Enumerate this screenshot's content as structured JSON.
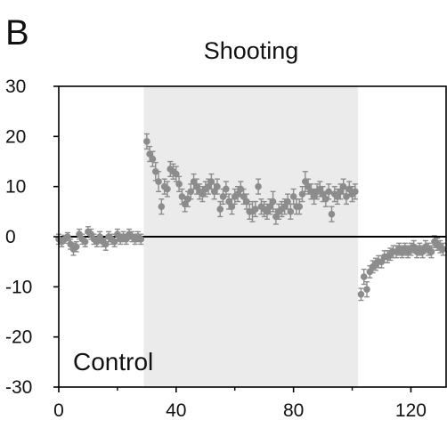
{
  "panel_label": "B",
  "chart_data": {
    "type": "scatter",
    "title": "Shooting",
    "xlabel": "",
    "ylabel": "",
    "annotation": "Control",
    "xlim": [
      0,
      132
    ],
    "ylim": [
      -30,
      30
    ],
    "xticks": [
      0,
      40,
      80,
      120
    ],
    "yticks": [
      30,
      20,
      10,
      0,
      -10,
      -20,
      -30
    ],
    "grid": false,
    "legend": "none",
    "shaded_region": {
      "x_start": 29,
      "x_end": 102,
      "color": "#ebebeb"
    },
    "reference_line_y": 0,
    "marker_color": "#8c8c8c",
    "series": [
      {
        "x": [
          0,
          1,
          2,
          3,
          4,
          5,
          6,
          7,
          8,
          9,
          10,
          11,
          12,
          13,
          14,
          15,
          16,
          17,
          18,
          19,
          20,
          21,
          22,
          23,
          24,
          25,
          26,
          27,
          28,
          30,
          31,
          32,
          33,
          34,
          35,
          36,
          37,
          38,
          39,
          40,
          41,
          42,
          43,
          44,
          45,
          46,
          47,
          48,
          49,
          50,
          51,
          52,
          53,
          54,
          55,
          56,
          57,
          58,
          59,
          60,
          61,
          62,
          63,
          64,
          65,
          66,
          67,
          68,
          69,
          70,
          71,
          72,
          73,
          74,
          75,
          76,
          77,
          78,
          79,
          80,
          81,
          82,
          83,
          84,
          85,
          86,
          87,
          88,
          89,
          90,
          91,
          92,
          93,
          94,
          95,
          96,
          97,
          98,
          99,
          100,
          101,
          103,
          104,
          105,
          106,
          107,
          108,
          109,
          110,
          111,
          112,
          113,
          114,
          115,
          116,
          117,
          118,
          119,
          120,
          121,
          122,
          123,
          124,
          125,
          126,
          127,
          128,
          129,
          130,
          131
        ],
        "y": [
          -0.5,
          -1,
          -0.5,
          0,
          -1.5,
          -2.5,
          -2,
          0.5,
          -0.5,
          -1,
          1,
          0.5,
          -0.5,
          -1,
          0,
          -1,
          -1.5,
          0,
          -0.5,
          -1,
          0.5,
          -0.5,
          0,
          -0.5,
          0.5,
          0,
          -0.5,
          0,
          -0.5,
          19,
          16.5,
          15.5,
          13,
          11,
          6,
          10,
          9.5,
          13.5,
          13,
          12.5,
          10.5,
          8,
          6.5,
          7.5,
          9,
          11,
          10,
          9,
          8.5,
          9.5,
          10,
          11,
          9,
          10,
          5.5,
          8,
          9.5,
          7,
          6,
          8,
          8.5,
          9.5,
          8,
          7,
          5,
          5,
          5.5,
          10,
          6,
          5.5,
          5,
          6,
          7,
          4,
          5,
          5.5,
          6,
          7,
          5,
          8,
          6,
          6,
          8.5,
          11,
          10,
          9,
          8,
          9,
          9.5,
          8.5,
          7.5,
          9,
          4.5,
          8.5,
          8,
          9,
          10,
          8,
          9.5,
          8.5,
          9,
          -11.5,
          -8,
          -10.5,
          -7,
          -6,
          -5.5,
          -5,
          -5,
          -4,
          -4,
          -3.5,
          -3,
          -3,
          -2.5,
          -3,
          -2.5,
          -3,
          -2.5,
          -2,
          -3,
          -2.5,
          -3,
          -2,
          -2.5,
          -3,
          -1,
          -1.5,
          -2,
          -2.5
        ],
        "error": [
          1,
          1,
          0.8,
          0.8,
          1,
          1.2,
          1,
          1,
          1,
          1,
          1,
          1,
          1,
          1,
          1,
          1,
          1.2,
          1,
          1,
          1,
          1,
          1,
          1,
          1,
          1,
          1,
          1,
          1,
          1,
          1.5,
          1.5,
          1.5,
          1.8,
          2,
          1.5,
          1.5,
          1.5,
          1.5,
          1.5,
          1.5,
          1.5,
          1.5,
          1.5,
          1.5,
          1.5,
          1.5,
          1.5,
          1.5,
          1.5,
          1.5,
          1.5,
          1.5,
          1.5,
          1.5,
          1.5,
          1.5,
          1.5,
          1.5,
          1.5,
          1.5,
          1.5,
          1.5,
          1.5,
          1.5,
          1.5,
          2,
          1.5,
          1.5,
          1.5,
          1.5,
          1.5,
          1.5,
          2,
          1.5,
          1.5,
          1.5,
          1.5,
          1.5,
          1.5,
          1.5,
          1.5,
          1.5,
          1.5,
          2,
          1.5,
          1.5,
          1.5,
          1.5,
          1.5,
          1.5,
          1.5,
          1.5,
          1.5,
          1.5,
          1.5,
          1.5,
          1.5,
          1.5,
          1.5,
          1.5,
          1.5,
          1.2,
          1.5,
          1.5,
          1.2,
          1.2,
          1.2,
          1.2,
          1.2,
          1.2,
          1.2,
          1.2,
          1.2,
          1.2,
          1.2,
          1.2,
          1.2,
          1.2,
          1.2,
          1.2,
          1.2,
          1.2,
          1.2,
          1.2,
          1.2,
          1.2,
          1.2,
          1.2,
          1.2,
          1.2
        ]
      }
    ]
  }
}
